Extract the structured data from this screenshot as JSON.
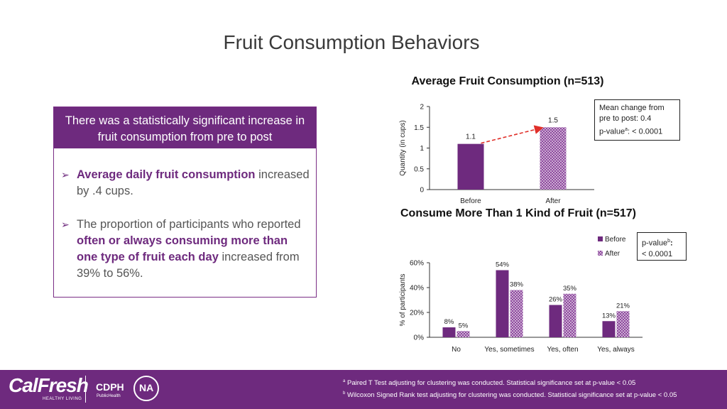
{
  "page_title": "Fruit Consumption Behaviors",
  "panel": {
    "header": "There was a statistically significant increase in fruit consumption from pre to post",
    "bullet1": {
      "em": "Average daily fruit consumption",
      "rest": " increased by .4 cups."
    },
    "bullet2": {
      "pre": "The proportion of participants who reported ",
      "em": "often or always consuming more than one type of fruit each day",
      "post": " increased from 39% to 56%."
    }
  },
  "note1": {
    "line1": "Mean change from",
    "line2": "pre to post: 0.4",
    "line3_label": "p-value",
    "line3_sup": "a",
    "line3_value": ": < 0.0001"
  },
  "note2": {
    "line1_label": "p-value",
    "line1_sup": "b",
    "line1_colon": ":",
    "line2": "< 0.0001"
  },
  "footnotes": {
    "a_sup": "a",
    "a": " Paired T Test adjusting for clustering was conducted. Statistical significance set at p-value < 0.05",
    "b_sup": "b",
    "b": " Wilcoxon Signed Rank test adjusting for clustering was conducted. Statistical significance set at p-value < 0.05"
  },
  "logos": {
    "calfresh": "CalFresh",
    "calfresh_sub": "HEALTHY LIVING",
    "cdph": "CDPH",
    "cdph_sub": "PublicHealth",
    "na": "NA"
  },
  "colors": {
    "before": "#6e2a7e",
    "after_pattern": "#8e4a9e",
    "arrow": "#e0302a",
    "footer": "#6e2a7e"
  },
  "chart_data": [
    {
      "type": "bar",
      "title": "Average Fruit Consumption (n=513)",
      "ylabel": "Quantity (in cups)",
      "ylim": [
        0,
        2
      ],
      "yticks": [
        "0",
        "0.5",
        "1",
        "1.5",
        "2"
      ],
      "categories": [
        "Before",
        "After"
      ],
      "values": [
        1.1,
        1.5
      ],
      "data_labels": [
        "1.1",
        "1.5"
      ]
    },
    {
      "type": "bar",
      "title": "Consume More Than 1 Kind of Fruit (n=517)",
      "ylabel": "% of participants",
      "ylim": [
        0,
        60
      ],
      "yticks": [
        "0%",
        "20%",
        "40%",
        "60%"
      ],
      "categories": [
        "No",
        "Yes, sometimes",
        "Yes, often",
        "Yes, always"
      ],
      "legend": "top-right",
      "series": [
        {
          "name": "Before",
          "values": [
            8,
            54,
            26,
            13
          ],
          "labels": [
            "8%",
            "54%",
            "26%",
            "13%"
          ]
        },
        {
          "name": "After",
          "values": [
            5,
            38,
            35,
            21
          ],
          "labels": [
            "5%",
            "38%",
            "35%",
            "21%"
          ]
        }
      ]
    }
  ]
}
